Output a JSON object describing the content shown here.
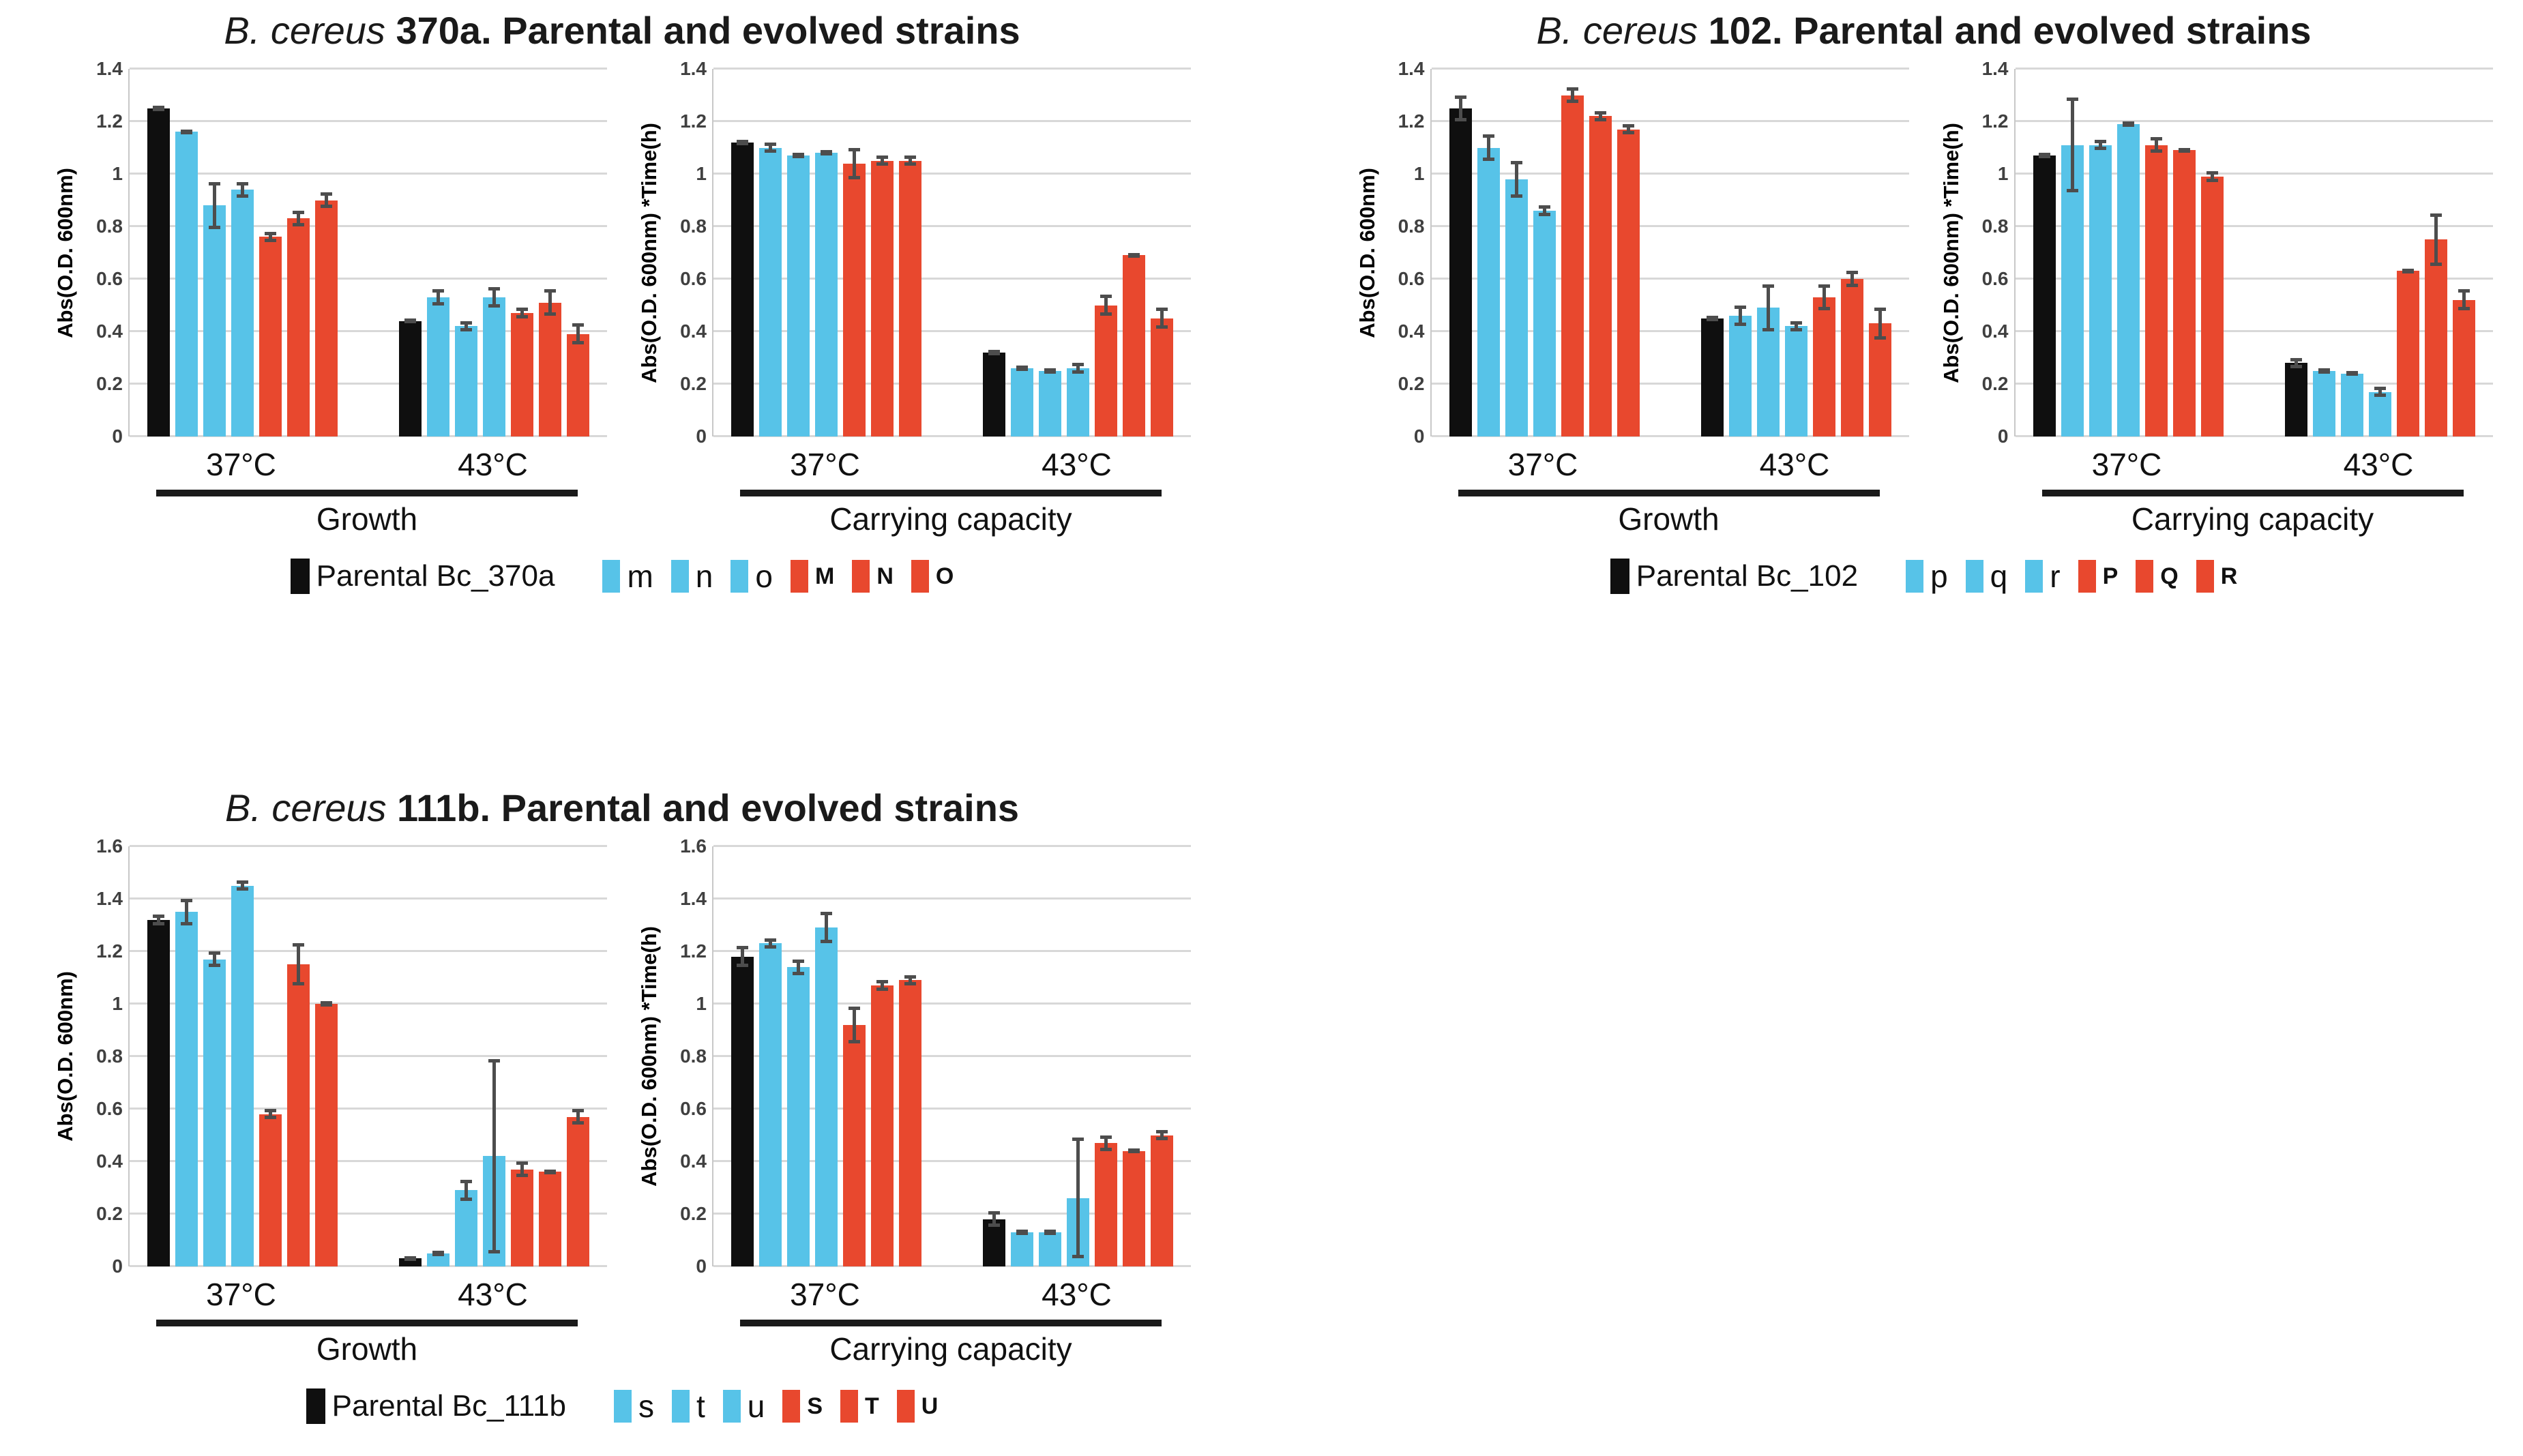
{
  "chart_data": {
    "type": "bar",
    "layout": "three panels, each with two grouped bar charts (Growth, Carrying capacity), groups 37°C and 43°C, 7 bars per group with error bars",
    "colors": {
      "parental": "#0f0f0f",
      "blue": "#57c3e8",
      "red": "#e8482e",
      "error_bar": "#4d4d4d",
      "gridline": "#d8d8d8"
    },
    "bar_series_colors": [
      "parental",
      "blue",
      "blue",
      "blue",
      "red",
      "red",
      "red"
    ],
    "panels": [
      {
        "id": "370a",
        "title": {
          "italic": "B. cereus",
          "rest": "370a. Parental and evolved strains"
        },
        "series_labels": [
          "Parental Bc_370a",
          "m",
          "n",
          "o",
          "M",
          "N",
          "O"
        ],
        "legend": {
          "parental": "Parental Bc_370a",
          "blue": [
            "m",
            "n",
            "o"
          ],
          "red": [
            "M",
            "N",
            "O"
          ]
        },
        "charts": [
          {
            "section": "Growth",
            "ylabel": "Abs(O.D. 600nm)",
            "ymax": 1.4,
            "ystep": 0.2,
            "yticks": [
              "1.4",
              "1.2",
              "1",
              "0.8",
              "0.6",
              "0.4",
              "0.2",
              "0"
            ],
            "groups": [
              {
                "label": "37°C",
                "values": [
                  1.25,
                  1.16,
                  0.88,
                  0.94,
                  0.76,
                  0.83,
                  0.9
                ],
                "errors": [
                  0.01,
                  0.01,
                  0.09,
                  0.03,
                  0.02,
                  0.03,
                  0.03
                ]
              },
              {
                "label": "43°C",
                "values": [
                  0.44,
                  0.53,
                  0.42,
                  0.53,
                  0.47,
                  0.51,
                  0.39
                ],
                "errors": [
                  0.01,
                  0.03,
                  0.02,
                  0.04,
                  0.02,
                  0.05,
                  0.04
                ]
              }
            ]
          },
          {
            "section": "Carrying capacity",
            "ylabel": "Abs(O.D. 600nm) *Time(h)",
            "ymax": 1.4,
            "ystep": 0.2,
            "yticks": [
              "1.4",
              "1.2",
              "1",
              "0.8",
              "0.6",
              "0.4",
              "0.2",
              "0"
            ],
            "groups": [
              {
                "label": "37°C",
                "values": [
                  1.12,
                  1.1,
                  1.07,
                  1.08,
                  1.04,
                  1.05,
                  1.05
                ],
                "errors": [
                  0.01,
                  0.02,
                  0.01,
                  0.01,
                  0.06,
                  0.02,
                  0.02
                ]
              },
              {
                "label": "43°C",
                "values": [
                  0.32,
                  0.26,
                  0.25,
                  0.26,
                  0.5,
                  0.69,
                  0.45
                ],
                "errors": [
                  0.01,
                  0.01,
                  0.01,
                  0.02,
                  0.04,
                  0.01,
                  0.04
                ]
              }
            ]
          }
        ]
      },
      {
        "id": "102",
        "title": {
          "italic": "B. cereus",
          "rest": "102. Parental and evolved strains"
        },
        "series_labels": [
          "Parental Bc_102",
          "p",
          "q",
          "r",
          "P",
          "Q",
          "R"
        ],
        "legend": {
          "parental": "Parental Bc_102",
          "blue": [
            "p",
            "q",
            "r"
          ],
          "red": [
            "P",
            "Q",
            "R"
          ]
        },
        "charts": [
          {
            "section": "Growth",
            "ylabel": "Abs(O.D. 600nm)",
            "ymax": 1.4,
            "ystep": 0.2,
            "yticks": [
              "1.4",
              "1.2",
              "1",
              "0.8",
              "0.6",
              "0.4",
              "0.2",
              "0"
            ],
            "groups": [
              {
                "label": "37°C",
                "values": [
                  1.25,
                  1.1,
                  0.98,
                  0.86,
                  1.3,
                  1.22,
                  1.17
                ],
                "errors": [
                  0.05,
                  0.05,
                  0.07,
                  0.02,
                  0.03,
                  0.02,
                  0.02
                ]
              },
              {
                "label": "43°C",
                "values": [
                  0.45,
                  0.46,
                  0.49,
                  0.42,
                  0.53,
                  0.6,
                  0.43
                ],
                "errors": [
                  0.01,
                  0.04,
                  0.09,
                  0.02,
                  0.05,
                  0.03,
                  0.06
                ]
              }
            ]
          },
          {
            "section": "Carrying capacity",
            "ylabel": "Abs(O.D. 600nm) *Time(h)",
            "ymax": 1.4,
            "ystep": 0.2,
            "yticks": [
              "1.4",
              "1.2",
              "1",
              "0.8",
              "0.6",
              "0.4",
              "0.2",
              "0"
            ],
            "groups": [
              {
                "label": "37°C",
                "values": [
                  1.07,
                  1.11,
                  1.11,
                  1.19,
                  1.11,
                  1.09,
                  0.99
                ],
                "errors": [
                  0.01,
                  0.18,
                  0.02,
                  0.01,
                  0.03,
                  0.01,
                  0.02
                ]
              },
              {
                "label": "43°C",
                "values": [
                  0.28,
                  0.25,
                  0.24,
                  0.17,
                  0.63,
                  0.75,
                  0.52
                ],
                "errors": [
                  0.02,
                  0.01,
                  0.01,
                  0.02,
                  0.01,
                  0.1,
                  0.04
                ]
              }
            ]
          }
        ]
      },
      {
        "id": "111b",
        "title": {
          "italic": "B. cereus",
          "rest": "111b. Parental and evolved strains"
        },
        "series_labels": [
          "Parental Bc_111b",
          "s",
          "t",
          "u",
          "S",
          "T",
          "U"
        ],
        "legend": {
          "parental": "Parental Bc_111b",
          "blue": [
            "s",
            "t",
            "u"
          ],
          "red": [
            "S",
            "T",
            "U"
          ]
        },
        "charts": [
          {
            "section": "Growth",
            "ylabel": "Abs(O.D. 600nm)",
            "ymax": 1.6,
            "ystep": 0.2,
            "yticks": [
              "1.6",
              "1.4",
              "1.2",
              "1",
              "0.8",
              "0.6",
              "0.4",
              "0.2",
              "0"
            ],
            "groups": [
              {
                "label": "37°C",
                "values": [
                  1.32,
                  1.35,
                  1.17,
                  1.45,
                  0.58,
                  1.15,
                  1.0
                ],
                "errors": [
                  0.02,
                  0.05,
                  0.03,
                  0.02,
                  0.02,
                  0.08,
                  0.01
                ]
              },
              {
                "label": "43°C",
                "values": [
                  0.03,
                  0.05,
                  0.29,
                  0.42,
                  0.37,
                  0.36,
                  0.57
                ],
                "errors": [
                  0.01,
                  0.01,
                  0.04,
                  0.37,
                  0.03,
                  0.01,
                  0.03
                ]
              }
            ]
          },
          {
            "section": "Carrying capacity",
            "ylabel": "Abs(O.D. 600nm) *Time(h)",
            "ymax": 1.6,
            "ystep": 0.2,
            "yticks": [
              "1.6",
              "1.4",
              "1.2",
              "1",
              "0.8",
              "0.6",
              "0.4",
              "0.2",
              "0"
            ],
            "groups": [
              {
                "label": "37°C",
                "values": [
                  1.18,
                  1.23,
                  1.14,
                  1.29,
                  0.92,
                  1.07,
                  1.09
                ],
                "errors": [
                  0.04,
                  0.02,
                  0.03,
                  0.06,
                  0.07,
                  0.02,
                  0.02
                ]
              },
              {
                "label": "43°C",
                "values": [
                  0.18,
                  0.13,
                  0.13,
                  0.26,
                  0.47,
                  0.44,
                  0.5
                ],
                "errors": [
                  0.03,
                  0.01,
                  0.01,
                  0.23,
                  0.03,
                  0.01,
                  0.02
                ]
              }
            ]
          }
        ]
      }
    ]
  }
}
